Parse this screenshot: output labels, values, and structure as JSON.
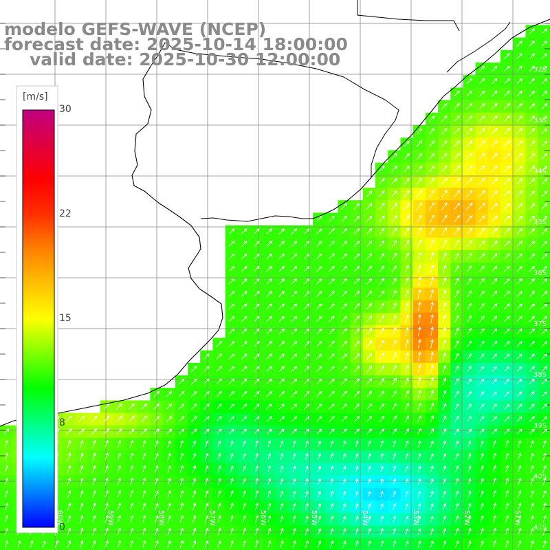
{
  "header": {
    "model": "modelo GEFS-WAVE (NCEP)",
    "forecast": "forecast date: 2025-10-14 18:00:00",
    "valid": "valid date: 2025-10-30 12:00:00"
  },
  "colorbar": {
    "units": "[m/s]",
    "ticks": [
      "30",
      "22",
      "15",
      "8",
      "0"
    ],
    "tick_values": [
      30,
      22,
      15,
      8,
      0
    ],
    "range": [
      0,
      30
    ],
    "colors": [
      "#0000ff",
      "#0080ff",
      "#00ffff",
      "#00ff80",
      "#00ff00",
      "#80ff00",
      "#ffff00",
      "#ffc000",
      "#ff8000",
      "#ff3000",
      "#ff0000",
      "#e00040",
      "#c00080"
    ]
  },
  "map": {
    "land_color": "#ffffff",
    "grid_color": "#888888",
    "lat_labels": [
      "32S",
      "33S",
      "34S",
      "35S",
      "36S",
      "37S",
      "38S",
      "39S",
      "40S",
      "41S"
    ],
    "lon_labels": [
      "60W",
      "59W",
      "58W",
      "57W",
      "56W",
      "55W",
      "54W",
      "53W",
      "52W",
      "51W"
    ]
  }
}
